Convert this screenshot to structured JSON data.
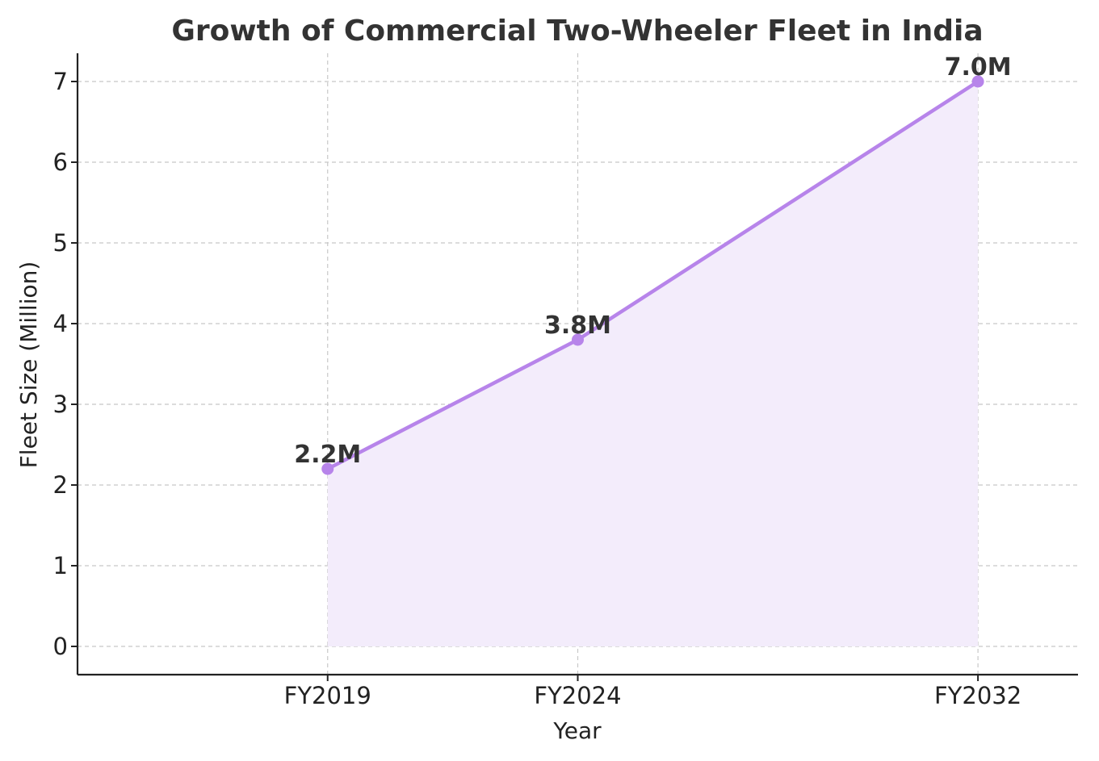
{
  "chart_data": {
    "type": "area",
    "title": "Growth of Commercial Two-Wheeler Fleet in India",
    "xlabel": "Year",
    "ylabel": "Fleet Size (Million)",
    "categories": [
      "FY2019",
      "FY2024",
      "FY2032"
    ],
    "x": [
      2019,
      2024,
      2032
    ],
    "values": [
      2.2,
      3.8,
      7.0
    ],
    "data_labels": [
      "2.2M",
      "3.8M",
      "7.0M"
    ],
    "ylim": [
      -0.35,
      7.35
    ],
    "xlim": [
      2014,
      2034
    ],
    "y_ticks": [
      0,
      1,
      2,
      3,
      4,
      5,
      6,
      7
    ],
    "grid": true,
    "legend": "none",
    "colors": {
      "line": "#b784ea",
      "fill": "#f3ecfb",
      "text": "#333333"
    }
  }
}
